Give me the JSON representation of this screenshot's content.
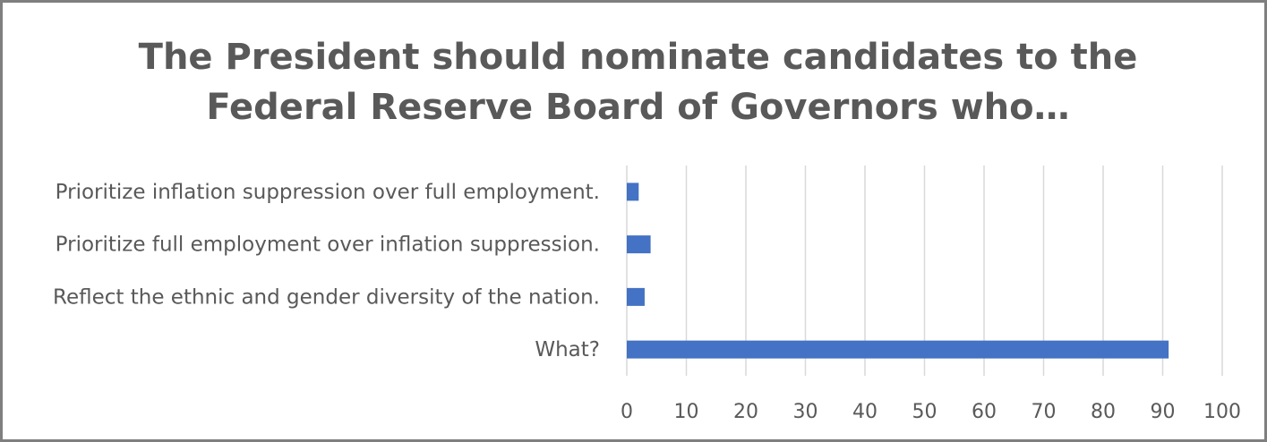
{
  "chart_data": {
    "type": "hbar",
    "title": "The President should nominate candidates to the Federal Reserve Board of Governors who…",
    "categories": [
      "Prioritize inflation suppression over full employment.",
      "Prioritize full employment over inflation suppression.",
      "Reflect the ethnic and gender diversity of the nation.",
      "What?"
    ],
    "values": [
      2,
      4,
      3,
      91
    ],
    "color": "#4472c4",
    "xlim": [
      0,
      100
    ],
    "xticks": [
      0,
      10,
      20,
      30,
      40,
      50,
      60,
      70,
      80,
      90,
      100
    ],
    "grid": true
  }
}
